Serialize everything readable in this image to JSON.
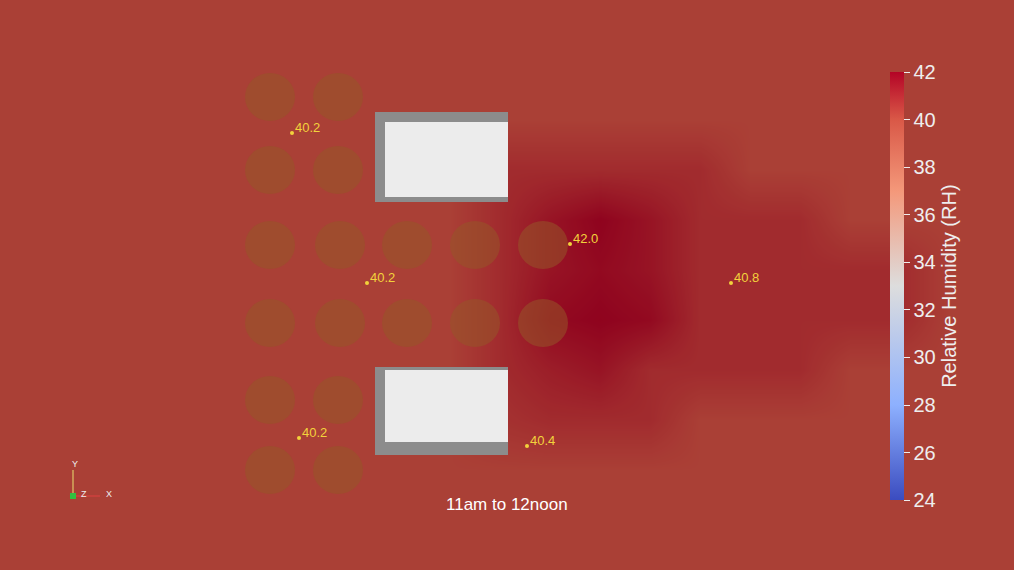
{
  "chart_data": {
    "type": "heatmap",
    "caption": "11am to 12noon",
    "colorbar_title": "Relative Humidity (RH)",
    "zlim": [
      24,
      42
    ],
    "zticks": [
      24,
      26,
      28,
      30,
      32,
      34,
      36,
      38,
      40,
      42
    ],
    "tick_labels": false,
    "xlim": [
      0,
      1014
    ],
    "ylim": [
      0,
      570
    ],
    "x": [
      0,
      50,
      100,
      150,
      200,
      250,
      300,
      350,
      400,
      450,
      500,
      550,
      600,
      650,
      700,
      750,
      800,
      850,
      900,
      950,
      1000
    ],
    "y": [
      0,
      50,
      100,
      150,
      200,
      250,
      300,
      350,
      400,
      450,
      500,
      550
    ],
    "z": [
      [
        40.2,
        40.2,
        40.2,
        40.2,
        40.2,
        40.2,
        40.2,
        40.2,
        40.2,
        40.2,
        40.2,
        40.2,
        40.2,
        40.2,
        40.2,
        40.2,
        40.2,
        40.2,
        40.2,
        40.2,
        40.2
      ],
      [
        40.2,
        40.2,
        40.2,
        40.2,
        40.2,
        40.2,
        40.2,
        40.2,
        40.2,
        40.2,
        40.2,
        40.2,
        40.2,
        40.2,
        40.2,
        40.2,
        40.2,
        40.2,
        40.2,
        40.2,
        40.2
      ],
      [
        40.2,
        40.2,
        40.2,
        40.2,
        40.2,
        40.2,
        40.2,
        40.2,
        40.2,
        40.2,
        40.2,
        40.2,
        40.2,
        40.2,
        40.2,
        40.2,
        40.2,
        40.2,
        40.2,
        40.2,
        40.2
      ],
      [
        40.2,
        40.2,
        40.2,
        40.2,
        40.2,
        40.2,
        40.2,
        40.2,
        40.2,
        40.2,
        40.6,
        40.8,
        40.8,
        40.8,
        40.2,
        40.2,
        40.2,
        40.2,
        40.2,
        40.2,
        40.2
      ],
      [
        40.2,
        40.2,
        40.2,
        40.2,
        40.2,
        40.2,
        40.2,
        40.2,
        40.2,
        40.2,
        40.8,
        41.2,
        41.5,
        40.8,
        40.8,
        40.8,
        40.8,
        40.2,
        40.2,
        40.2,
        40.2
      ],
      [
        40.2,
        40.2,
        40.2,
        40.2,
        40.2,
        40.2,
        40.2,
        40.2,
        40.2,
        40.2,
        40.8,
        41.8,
        42.0,
        41.8,
        40.8,
        40.8,
        40.8,
        40.8,
        40.8,
        40.2,
        40.2
      ],
      [
        40.2,
        40.2,
        40.2,
        40.2,
        40.2,
        40.2,
        40.2,
        40.2,
        40.2,
        40.2,
        40.8,
        41.5,
        41.8,
        41.5,
        40.8,
        40.8,
        40.8,
        40.8,
        40.8,
        40.2,
        40.2
      ],
      [
        40.2,
        40.2,
        40.2,
        40.2,
        40.2,
        40.2,
        40.2,
        40.2,
        40.2,
        40.2,
        40.8,
        41.5,
        42.0,
        41.5,
        40.8,
        40.8,
        40.8,
        40.2,
        40.2,
        40.2,
        40.2
      ],
      [
        40.2,
        40.2,
        40.2,
        40.2,
        40.2,
        40.2,
        40.2,
        40.2,
        40.2,
        40.2,
        40.8,
        40.8,
        40.8,
        40.8,
        40.8,
        40.2,
        40.2,
        40.2,
        40.2,
        40.2,
        40.2
      ],
      [
        40.2,
        40.2,
        40.2,
        40.2,
        40.2,
        40.2,
        40.2,
        40.2,
        40.2,
        40.2,
        40.2,
        40.2,
        40.2,
        40.2,
        40.2,
        40.2,
        40.2,
        40.2,
        40.2,
        40.2,
        40.2
      ],
      [
        40.2,
        40.2,
        40.2,
        40.2,
        40.2,
        40.2,
        40.2,
        40.2,
        40.2,
        40.2,
        40.2,
        40.2,
        40.2,
        40.2,
        40.2,
        40.2,
        40.2,
        40.2,
        40.2,
        40.2,
        40.2
      ],
      [
        40.2,
        40.2,
        40.2,
        40.2,
        40.2,
        40.2,
        40.2,
        40.2,
        40.2,
        40.2,
        40.2,
        40.2,
        40.2,
        40.2,
        40.2,
        40.2,
        40.2,
        40.2,
        40.2,
        40.2,
        40.2
      ]
    ],
    "probes": [
      {
        "x": 292,
        "y": 437,
        "value": 40.2,
        "label": "40.2"
      },
      {
        "x": 570,
        "y": 326,
        "value": 42,
        "label": "42.0"
      },
      {
        "x": 367,
        "y": 287,
        "value": 40.2,
        "label": "40.2"
      },
      {
        "x": 731,
        "y": 287,
        "value": 40.8,
        "label": "40.8"
      },
      {
        "x": 299,
        "y": 132,
        "value": 40.2,
        "label": "40.2"
      },
      {
        "x": 527,
        "y": 124,
        "value": 40.4,
        "label": "40.4"
      }
    ],
    "axis_labels": {
      "x": "X",
      "y": "Y",
      "z": "Z"
    }
  }
}
